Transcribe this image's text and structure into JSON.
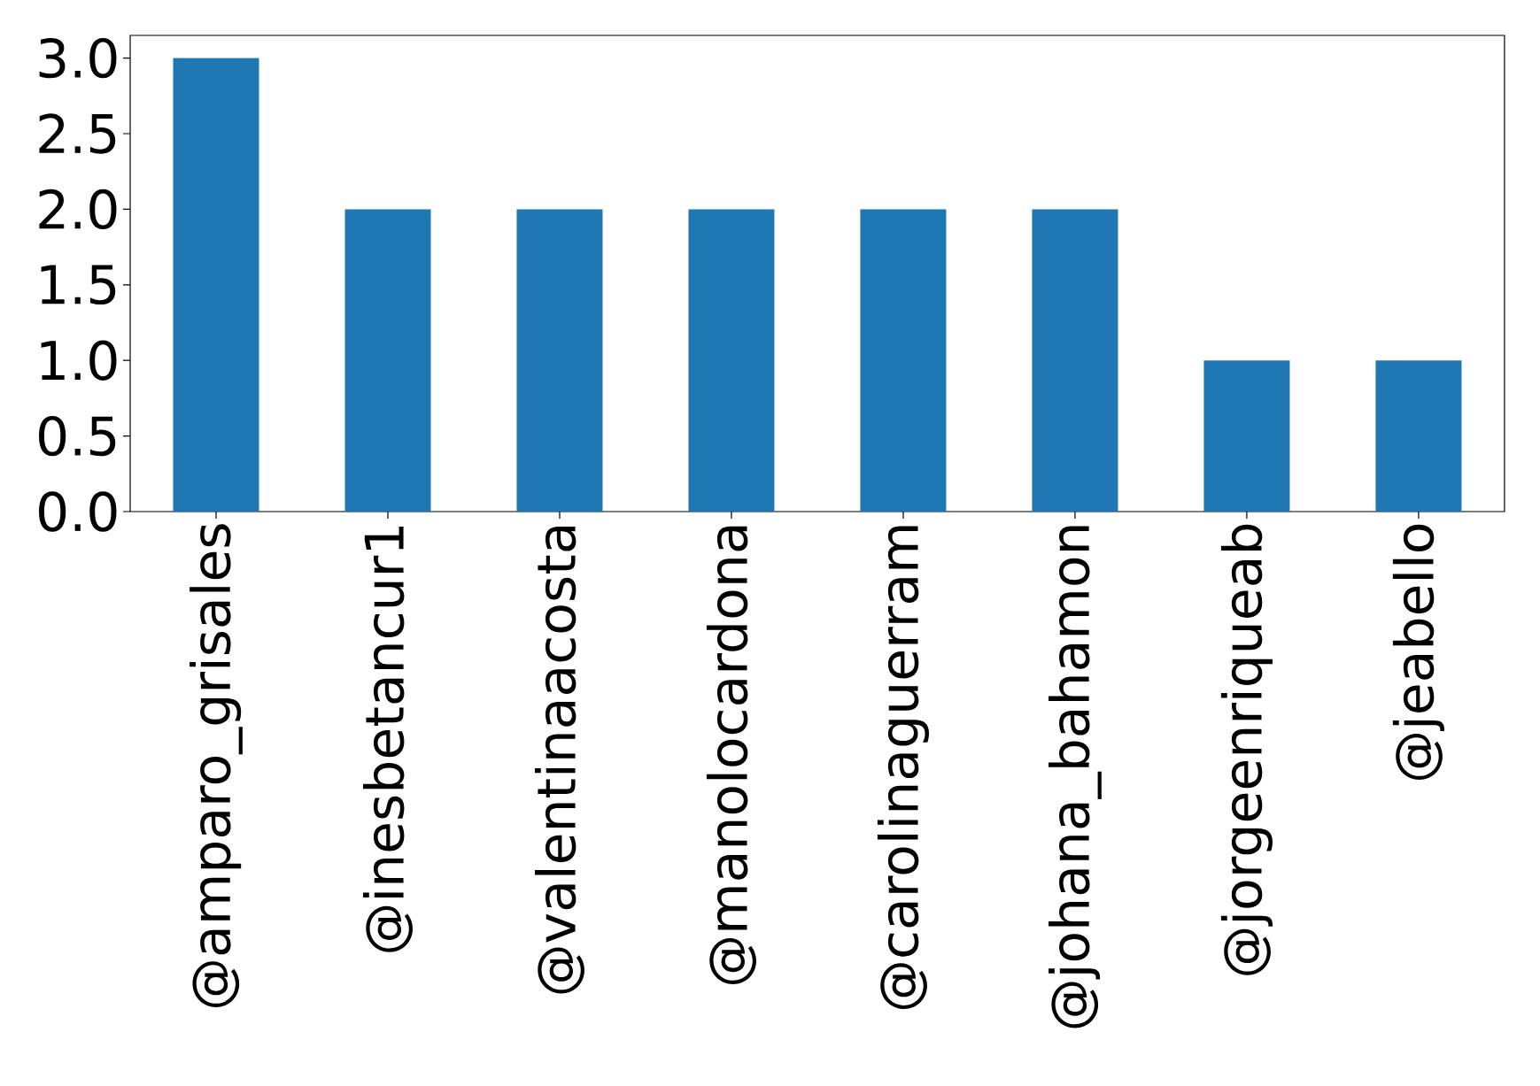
{
  "chart_data": {
    "type": "bar",
    "categories": [
      "@amparo_grisales",
      "@inesbetancur1",
      "@valentinaacosta",
      "@manolocardona",
      "@carolinaguerram",
      "@johana_bahamon",
      "@jorgeenriqueab",
      "@jeabello"
    ],
    "values": [
      3,
      2,
      2,
      2,
      2,
      2,
      1,
      1
    ],
    "color": "#1f77b4",
    "ylim": [
      0,
      3.15
    ],
    "yticks": [
      {
        "value": 0,
        "label": "0.0"
      },
      {
        "value": 0.5,
        "label": "0.5"
      },
      {
        "value": 1,
        "label": "1.0"
      },
      {
        "value": 1.5,
        "label": "1.5"
      },
      {
        "value": 2,
        "label": "2.0"
      },
      {
        "value": 2.5,
        "label": "2.5"
      },
      {
        "value": 3,
        "label": "3.0"
      }
    ],
    "grid": false
  }
}
